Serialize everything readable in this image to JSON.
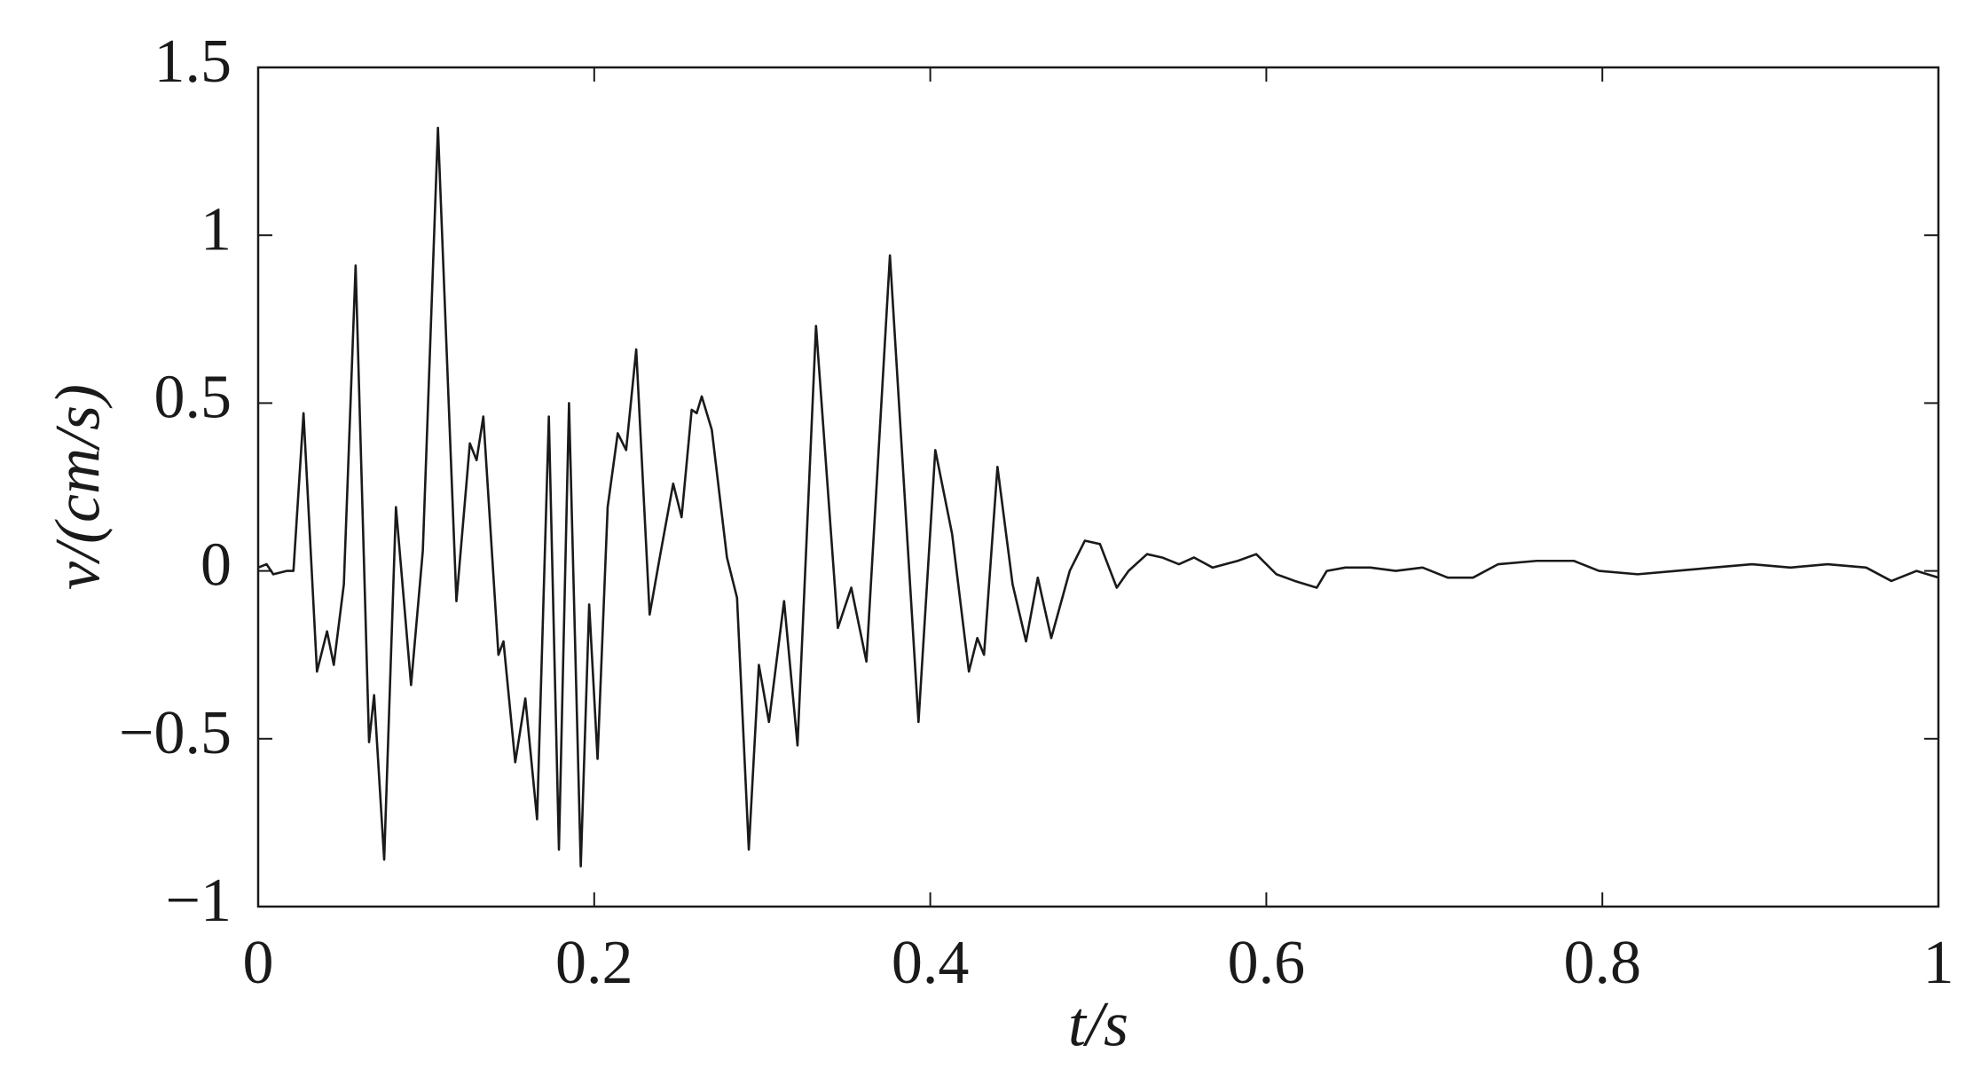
{
  "chart_data": {
    "type": "line",
    "x_label": "t/s",
    "y_label": "v/(cm/s)",
    "xlim": [
      0,
      1
    ],
    "ylim": [
      -1,
      1.5
    ],
    "xticks": [
      0,
      0.2,
      0.4,
      0.6,
      0.8,
      1
    ],
    "yticks": [
      {
        "value": -1,
        "label": "−1"
      },
      {
        "value": -0.5,
        "label": "−0.5"
      },
      0,
      0.5,
      1,
      1.5
    ],
    "grid": false,
    "x": [
      0,
      0.005,
      0.009,
      0.017,
      0.021,
      0.027,
      0.035,
      0.041,
      0.045,
      0.051,
      0.058,
      0.066,
      0.069,
      0.075,
      0.082,
      0.091,
      0.098,
      0.107,
      0.118,
      0.126,
      0.13,
      0.134,
      0.143,
      0.146,
      0.153,
      0.159,
      0.166,
      0.173,
      0.179,
      0.185,
      0.192,
      0.197,
      0.202,
      0.208,
      0.214,
      0.219,
      0.225,
      0.233,
      0.239,
      0.247,
      0.252,
      0.258,
      0.261,
      0.264,
      0.27,
      0.279,
      0.285,
      0.292,
      0.298,
      0.304,
      0.313,
      0.321,
      0.332,
      0.345,
      0.353,
      0.362,
      0.376,
      0.393,
      0.403,
      0.413,
      0.423,
      0.428,
      0.432,
      0.44,
      0.449,
      0.457,
      0.464,
      0.472,
      0.483,
      0.492,
      0.501,
      0.511,
      0.518,
      0.529,
      0.538,
      0.548,
      0.557,
      0.568,
      0.583,
      0.594,
      0.606,
      0.617,
      0.63,
      0.636,
      0.647,
      0.662,
      0.677,
      0.693,
      0.708,
      0.723,
      0.738,
      0.761,
      0.783,
      0.798,
      0.821,
      0.844,
      0.866,
      0.889,
      0.912,
      0.934,
      0.957,
      0.972,
      0.987,
      1
    ],
    "series": [
      {
        "color": "#1a1a1a",
        "values": [
          0.01,
          0.02,
          -0.01,
          0,
          0,
          0.47,
          -0.3,
          -0.18,
          -0.28,
          -0.04,
          0.91,
          -0.51,
          -0.37,
          -0.86,
          0.19,
          -0.34,
          0.06,
          1.32,
          -0.09,
          0.38,
          0.33,
          0.46,
          -0.25,
          -0.21,
          -0.57,
          -0.38,
          -0.74,
          0.46,
          -0.83,
          0.5,
          -0.88,
          -0.1,
          -0.56,
          0.19,
          0.41,
          0.36,
          0.66,
          -0.13,
          0.04,
          0.26,
          0.16,
          0.48,
          0.47,
          0.52,
          0.42,
          0.04,
          -0.08,
          -0.83,
          -0.28,
          -0.45,
          -0.09,
          -0.52,
          0.73,
          -0.17,
          -0.05,
          -0.27,
          0.94,
          -0.45,
          0.36,
          0.11,
          -0.3,
          -0.2,
          -0.25,
          0.31,
          -0.04,
          -0.21,
          -0.02,
          -0.2,
          0,
          0.09,
          0.08,
          -0.05,
          0,
          0.05,
          0.04,
          0.02,
          0.04,
          0.01,
          0.03,
          0.05,
          -0.01,
          -0.03,
          -0.05,
          0,
          0.01,
          0.01,
          0,
          0.01,
          -0.02,
          -0.02,
          0.02,
          0.03,
          0.03,
          0,
          -0.01,
          0,
          0.01,
          0.02,
          0.01,
          0.02,
          0.01,
          -0.03,
          0,
          -0.02
        ]
      }
    ]
  }
}
